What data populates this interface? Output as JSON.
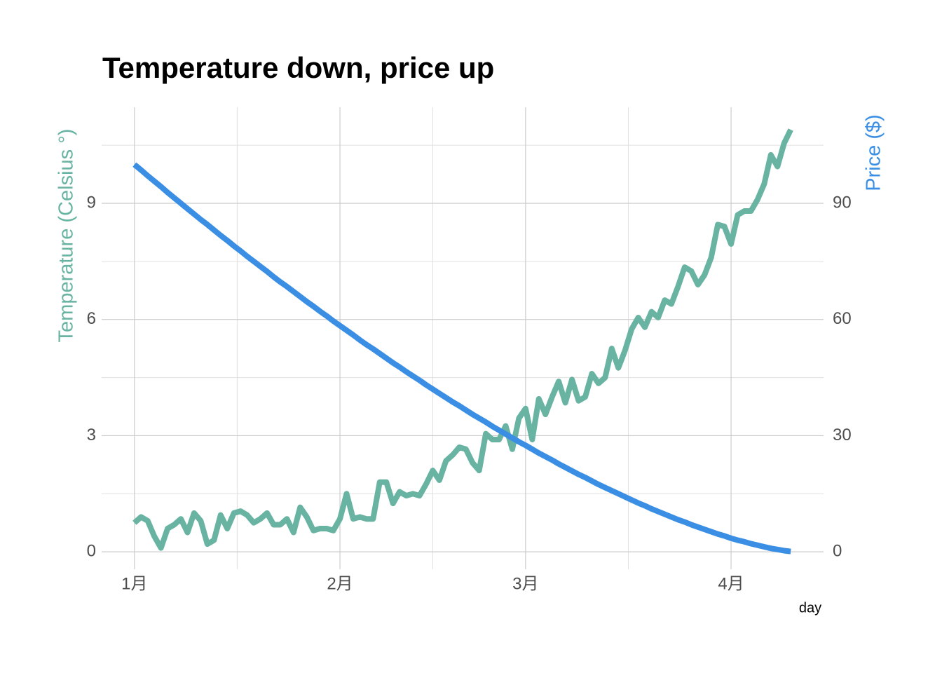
{
  "chart_data": {
    "type": "line",
    "title": "Temperature down, price up",
    "xlabel": "day",
    "ylabel": "Temperature (Celsius °)",
    "y2label": "Price ($)",
    "x": [
      0,
      1,
      2,
      3,
      4,
      5,
      6,
      7,
      8,
      9,
      10,
      11,
      12,
      13,
      14,
      15,
      16,
      17,
      18,
      19,
      20,
      21,
      22,
      23,
      24,
      25,
      26,
      27,
      28,
      29,
      30,
      31,
      32,
      33,
      34,
      35,
      36,
      37,
      38,
      39,
      40,
      41,
      42,
      43,
      44,
      45,
      46,
      47,
      48,
      49,
      50,
      51,
      52,
      53,
      54,
      55,
      56,
      57,
      58,
      59,
      60,
      61,
      62,
      63,
      64,
      65,
      66,
      67,
      68,
      69,
      70,
      71,
      72,
      73,
      74,
      75,
      76,
      77,
      78,
      79,
      80,
      81,
      82,
      83,
      84,
      85,
      86,
      87,
      88,
      89,
      90,
      91,
      92,
      93,
      94,
      95,
      96,
      97,
      98,
      99
    ],
    "xlim": [
      -4.95,
      103.95
    ],
    "xticks": [
      {
        "value": 0,
        "label": "1月"
      },
      {
        "value": 31,
        "label": "2月"
      },
      {
        "value": 59,
        "label": "3月"
      },
      {
        "value": 90,
        "label": "4月"
      }
    ],
    "ylim": [
      -0.45,
      11.48
    ],
    "yticks": [
      0,
      3,
      6,
      9
    ],
    "y2lim": [
      -4.5,
      114.8
    ],
    "y2ticks": [
      0,
      30,
      60,
      90
    ],
    "grid": true,
    "series": [
      {
        "name": "Temperature",
        "color": "#69b3a2",
        "axis": "y",
        "values": [
          0.75,
          0.9,
          0.8,
          0.4,
          0.1,
          0.6,
          0.7,
          0.85,
          0.5,
          1.0,
          0.8,
          0.2,
          0.3,
          0.95,
          0.6,
          1.0,
          1.05,
          0.95,
          0.75,
          0.85,
          1.0,
          0.7,
          0.7,
          0.85,
          0.5,
          1.15,
          0.9,
          0.55,
          0.6,
          0.6,
          0.55,
          0.85,
          1.5,
          0.85,
          0.9,
          0.85,
          0.85,
          1.8,
          1.8,
          1.25,
          1.55,
          1.45,
          1.5,
          1.45,
          1.75,
          2.1,
          1.85,
          2.35,
          2.5,
          2.7,
          2.65,
          2.3,
          2.1,
          3.05,
          2.9,
          2.9,
          3.25,
          2.65,
          3.45,
          3.7,
          2.9,
          3.95,
          3.55,
          4.0,
          4.4,
          3.85,
          4.45,
          3.9,
          4.0,
          4.6,
          4.35,
          4.5,
          5.25,
          4.75,
          5.2,
          5.75,
          6.05,
          5.8,
          6.2,
          6.05,
          6.5,
          6.4,
          6.85,
          7.35,
          7.25,
          6.9,
          7.15,
          7.6,
          8.45,
          8.4,
          7.95,
          8.7,
          8.8,
          8.8,
          9.1,
          9.5,
          10.25,
          9.95,
          10.55,
          10.9
        ]
      },
      {
        "name": "Price",
        "color": "#3a8fe4",
        "axis": "y2",
        "values": [
          100,
          98.6,
          97.1,
          95.7,
          94.3,
          92.8,
          91.4,
          90.0,
          88.6,
          87.2,
          85.8,
          84.5,
          83.1,
          81.7,
          80.4,
          79.0,
          77.7,
          76.3,
          75.0,
          73.7,
          72.4,
          71.0,
          69.7,
          68.5,
          67.2,
          65.9,
          64.6,
          63.4,
          62.1,
          60.9,
          59.6,
          58.4,
          57.2,
          56.0,
          54.7,
          53.5,
          52.4,
          51.2,
          50.0,
          48.8,
          47.7,
          46.5,
          45.4,
          44.3,
          43.1,
          42.0,
          40.9,
          39.8,
          38.7,
          37.7,
          36.6,
          35.5,
          34.5,
          33.5,
          32.4,
          31.4,
          30.4,
          29.4,
          28.4,
          27.5,
          26.5,
          25.5,
          24.6,
          23.7,
          22.7,
          21.8,
          20.9,
          20.0,
          19.2,
          18.3,
          17.4,
          16.6,
          15.8,
          15.0,
          14.2,
          13.4,
          12.6,
          11.9,
          11.1,
          10.4,
          9.7,
          9.0,
          8.3,
          7.7,
          7.0,
          6.4,
          5.8,
          5.2,
          4.6,
          4.1,
          3.5,
          3.0,
          2.6,
          2.1,
          1.7,
          1.3,
          0.9,
          0.6,
          0.3,
          0.1
        ]
      }
    ]
  }
}
